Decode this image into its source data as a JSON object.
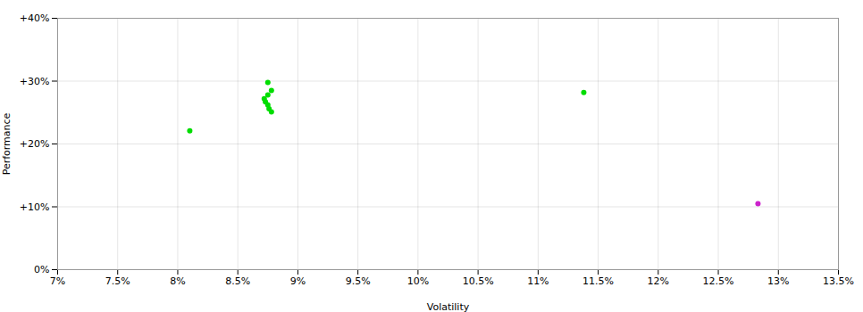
{
  "chart_data": {
    "type": "scatter",
    "xlabel": "Volatility",
    "ylabel": "Performance",
    "xlim": [
      0.07,
      0.135
    ],
    "ylim": [
      0.0,
      0.4
    ],
    "xticks": [
      {
        "value": 0.07,
        "label": "7%"
      },
      {
        "value": 0.075,
        "label": "7.5%"
      },
      {
        "value": 0.08,
        "label": "8%"
      },
      {
        "value": 0.085,
        "label": "8.5%"
      },
      {
        "value": 0.09,
        "label": "9%"
      },
      {
        "value": 0.095,
        "label": "9.5%"
      },
      {
        "value": 0.1,
        "label": "10%"
      },
      {
        "value": 0.105,
        "label": "10.5%"
      },
      {
        "value": 0.11,
        "label": "11%"
      },
      {
        "value": 0.115,
        "label": "11.5%"
      },
      {
        "value": 0.12,
        "label": "12%"
      },
      {
        "value": 0.125,
        "label": "12.5%"
      },
      {
        "value": 0.13,
        "label": "13%"
      },
      {
        "value": 0.135,
        "label": "13.5%"
      }
    ],
    "yticks": [
      {
        "value": 0.0,
        "label": "0%"
      },
      {
        "value": 0.1,
        "label": "+10%"
      },
      {
        "value": 0.2,
        "label": "+20%"
      },
      {
        "value": 0.3,
        "label": "+30%"
      },
      {
        "value": 0.4,
        "label": "+40%"
      }
    ],
    "grid": true,
    "series": [
      {
        "color": "#00dd00",
        "x": [
          0.0875,
          0.0878,
          0.0875,
          0.0872,
          0.0873,
          0.0875,
          0.0876,
          0.0878,
          0.081,
          0.1138
        ],
        "values": [
          0.298,
          0.285,
          0.278,
          0.272,
          0.267,
          0.262,
          0.256,
          0.251,
          0.221,
          0.282
        ]
      },
      {
        "color": "#cc22cc",
        "x": [
          0.1283
        ],
        "values": [
          0.105
        ]
      }
    ]
  }
}
